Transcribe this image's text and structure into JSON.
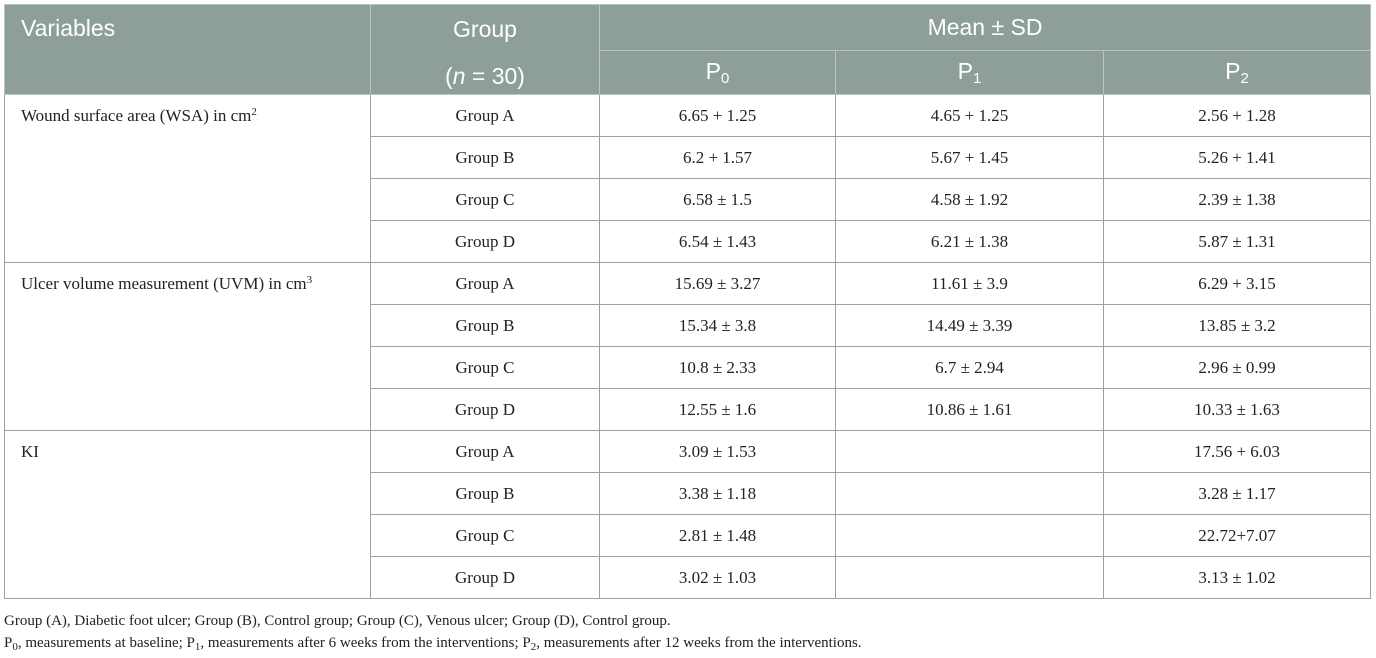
{
  "header": {
    "variables": "Variables",
    "group_line1": "Group",
    "group_line2_open": "(",
    "group_line2_n": "n",
    "group_line2_rest": " = 30)",
    "mean_sd": "Mean ± SD",
    "p0_base": "P",
    "p0_sub": "0",
    "p1_base": "P",
    "p1_sub": "1",
    "p2_base": "P",
    "p2_sub": "2"
  },
  "sections": [
    {
      "variable": "Wound surface area (WSA) in cm",
      "variable_sup": "2",
      "rows": [
        {
          "group": "Group A",
          "p0": "6.65 + 1.25",
          "p1": "4.65 + 1.25",
          "p2": "2.56 + 1.28"
        },
        {
          "group": "Group B",
          "p0": "6.2 + 1.57",
          "p1": "5.67 + 1.45",
          "p2": "5.26 + 1.41"
        },
        {
          "group": "Group C",
          "p0": "6.58 ± 1.5",
          "p1": "4.58 ± 1.92",
          "p2": "2.39 ± 1.38"
        },
        {
          "group": "Group D",
          "p0": "6.54 ± 1.43",
          "p1": "6.21 ± 1.38",
          "p2": "5.87 ± 1.31"
        }
      ]
    },
    {
      "variable": "Ulcer volume measurement (UVM) in cm",
      "variable_sup": "3",
      "rows": [
        {
          "group": "Group A",
          "p0": "15.69 ± 3.27",
          "p1": "11.61 ± 3.9",
          "p2": "6.29 + 3.15"
        },
        {
          "group": "Group B",
          "p0": "15.34 ± 3.8",
          "p1": "14.49 ± 3.39",
          "p2": "13.85 ± 3.2"
        },
        {
          "group": "Group C",
          "p0": "10.8 ± 2.33",
          "p1": "6.7 ± 2.94",
          "p2": "2.96 ± 0.99"
        },
        {
          "group": "Group D",
          "p0": "12.55 ± 1.6",
          "p1": "10.86 ± 1.61",
          "p2": "10.33 ± 1.63"
        }
      ]
    },
    {
      "variable": "KI",
      "variable_sup": "",
      "rows": [
        {
          "group": "Group A",
          "p0": "3.09 ± 1.53",
          "p1": "",
          "p2": "17.56 + 6.03"
        },
        {
          "group": "Group B",
          "p0": "3.38 ± 1.18",
          "p1": "",
          "p2": "3.28 ± 1.17"
        },
        {
          "group": "Group C",
          "p0": "2.81 ± 1.48",
          "p1": "",
          "p2": "22.72+7.07"
        },
        {
          "group": "Group D",
          "p0": "3.02 ± 1.03",
          "p1": "",
          "p2": "3.13 ± 1.02"
        }
      ]
    }
  ],
  "notes": {
    "line1": "Group (A), Diabetic foot ulcer; Group (B), Control group; Group (C), Venous ulcer; Group (D), Control group.",
    "p0_base": "P",
    "p0_sub": "0",
    "p0_text": ", measurements at baseline; ",
    "p1_base": "P",
    "p1_sub": "1",
    "p1_text": ", measurements after 6 weeks from the interventions; ",
    "p2_base": "P",
    "p2_sub": "2",
    "p2_text": ", measurements after 12 weeks from the interventions."
  }
}
